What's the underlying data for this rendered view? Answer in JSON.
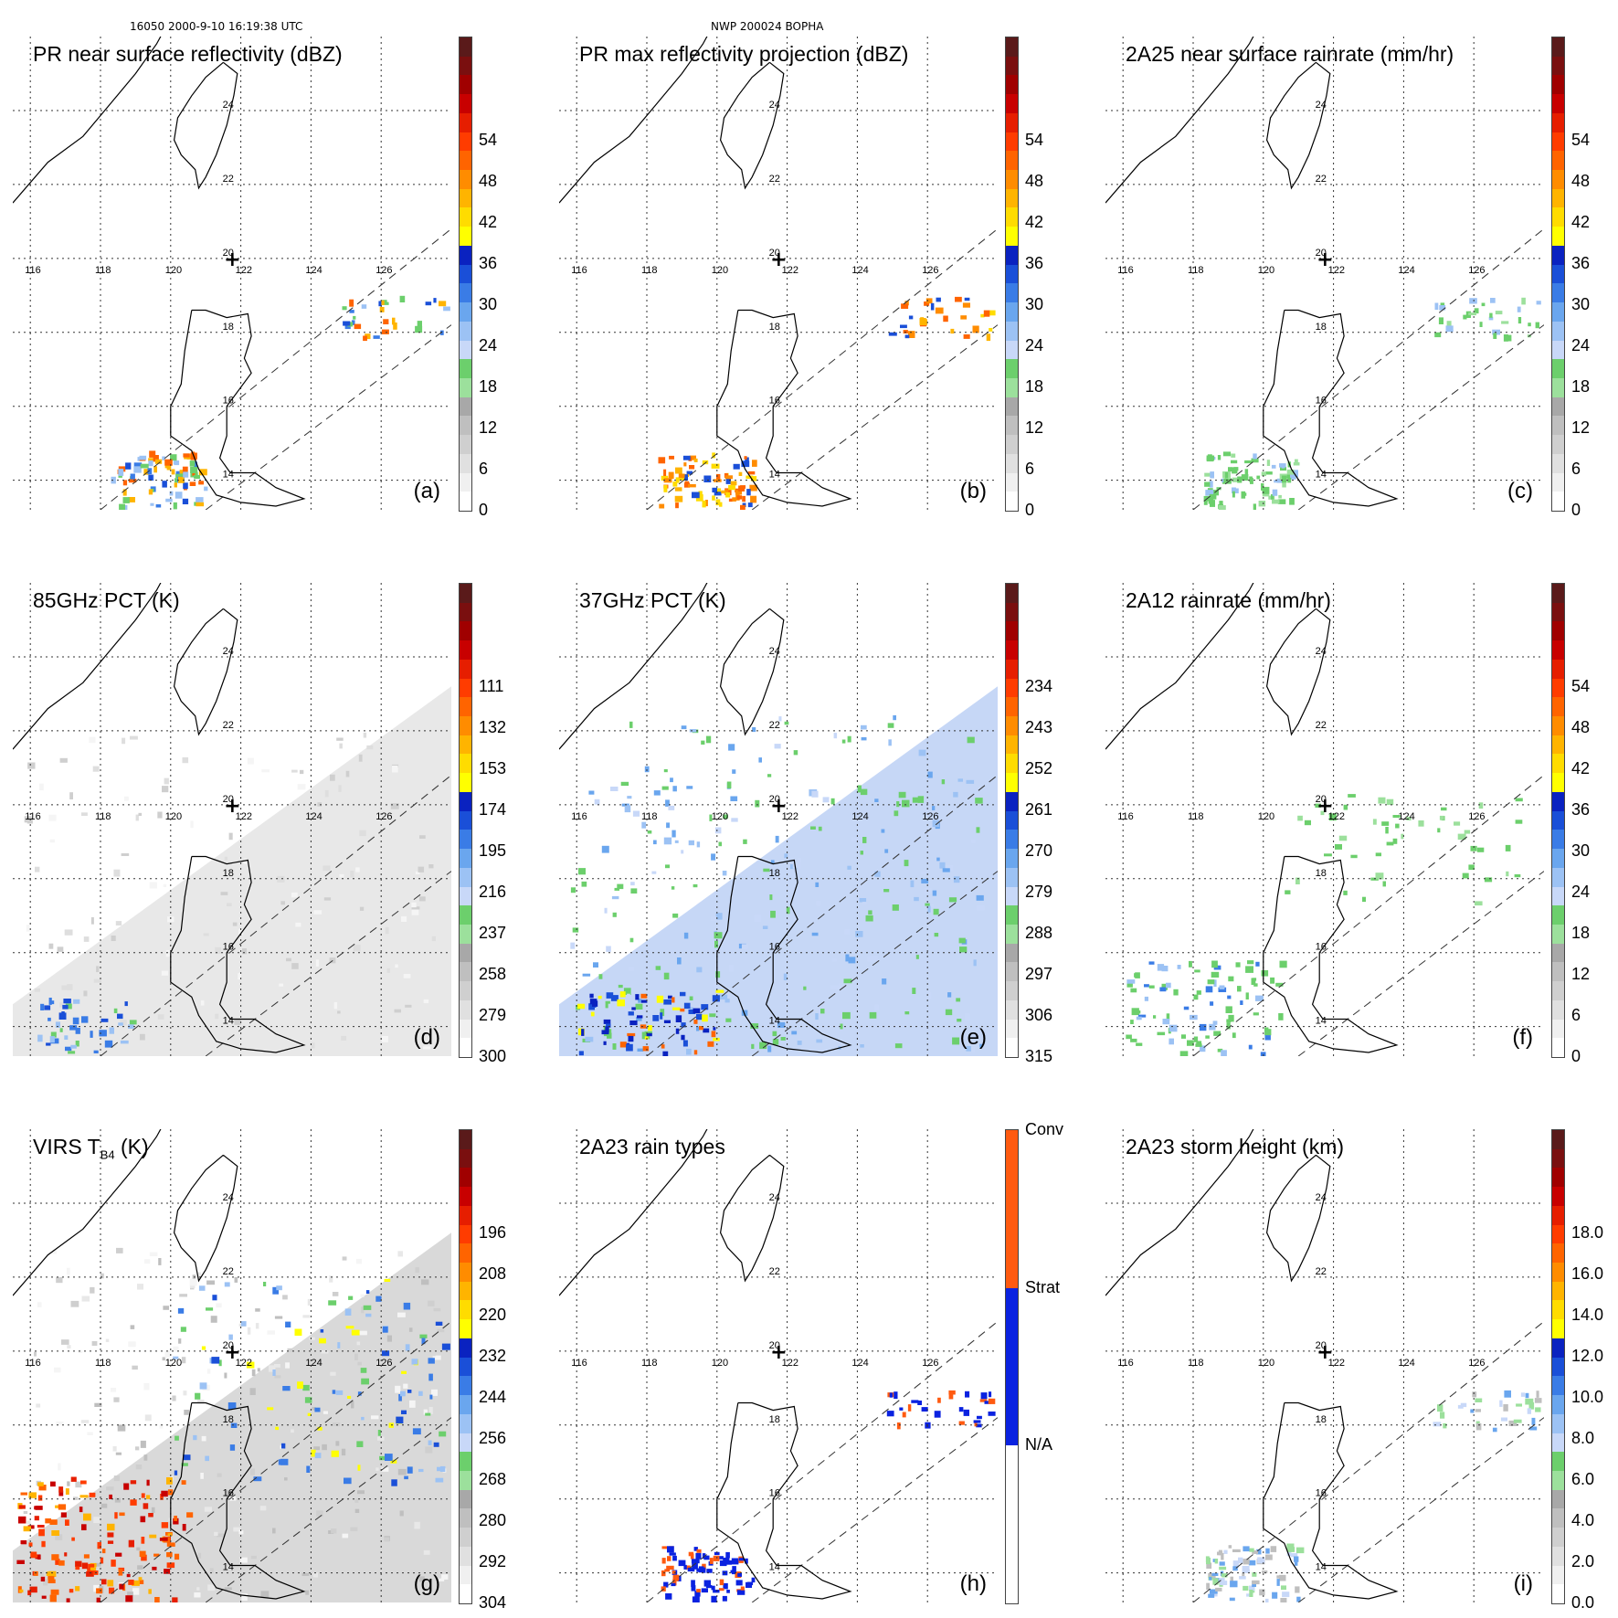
{
  "header": {
    "left": "16050 2000-9-10 16:19:38 UTC",
    "center": "NWP 200024 BOPHA"
  },
  "map": {
    "lon_labels": [
      "116",
      "118",
      "120",
      "122",
      "124",
      "126"
    ],
    "lat_labels": [
      "14",
      "16",
      "18",
      "20",
      "22",
      "24"
    ],
    "center_marker": "+"
  },
  "panels": [
    {
      "id": "a",
      "title": "PR near surface reflectivity (dBZ)",
      "tag": "(a)",
      "colorbar": [
        "0",
        "6",
        "12",
        "18",
        "24",
        "30",
        "36",
        "42",
        "48",
        "54"
      ]
    },
    {
      "id": "b",
      "title": "PR max reflectivity projection (dBZ)",
      "tag": "(b)",
      "colorbar": [
        "0",
        "6",
        "12",
        "18",
        "24",
        "30",
        "36",
        "42",
        "48",
        "54"
      ]
    },
    {
      "id": "c",
      "title": "2A25 near surface rainrate (mm/hr)",
      "tag": "(c)",
      "colorbar": [
        "0",
        "6",
        "12",
        "18",
        "24",
        "30",
        "36",
        "42",
        "48",
        "54"
      ]
    },
    {
      "id": "d",
      "title": "85GHz PCT (K)",
      "tag": "(d)",
      "colorbar": [
        "300",
        "279",
        "258",
        "237",
        "216",
        "195",
        "174",
        "153",
        "132",
        "111"
      ]
    },
    {
      "id": "e",
      "title": "37GHz PCT (K)",
      "tag": "(e)",
      "colorbar": [
        "315",
        "306",
        "297",
        "288",
        "279",
        "270",
        "261",
        "252",
        "243",
        "234"
      ]
    },
    {
      "id": "f",
      "title": "2A12 rainrate (mm/hr)",
      "tag": "(f)",
      "colorbar": [
        "0",
        "6",
        "12",
        "18",
        "24",
        "30",
        "36",
        "42",
        "48",
        "54"
      ]
    },
    {
      "id": "g",
      "title": "VIRS T",
      "title_sub": "B4",
      "title_rest": " (K)",
      "tag": "(g)",
      "colorbar": [
        "304",
        "292",
        "280",
        "268",
        "256",
        "244",
        "232",
        "220",
        "208",
        "196"
      ]
    },
    {
      "id": "h",
      "title": "2A23 rain types",
      "tag": "(h)",
      "colorbar": [
        "N/A",
        "Strat",
        "Conv"
      ]
    },
    {
      "id": "i",
      "title": "2A23 storm height (km)",
      "tag": "(i)",
      "colorbar": [
        "0.0",
        "2.0",
        "4.0",
        "6.0",
        "8.0",
        "10.0",
        "12.0",
        "14.0",
        "16.0",
        "18.0"
      ]
    }
  ],
  "colors": {
    "scale": [
      "#ffffff",
      "#f0f0f0",
      "#e0e0e0",
      "#cfcfcf",
      "#bfbfbf",
      "#a8a8a8",
      "#9ce09c",
      "#6ccf6c",
      "#c8d8f8",
      "#9cc2f4",
      "#6aa6ee",
      "#3a7ce6",
      "#1a4fd8",
      "#0a22c0",
      "#ffff00",
      "#ffdc00",
      "#ffb400",
      "#ff8c00",
      "#ff6400",
      "#ff3c00",
      "#e61e00",
      "#c80000",
      "#a00000",
      "#7a0f0f",
      "#5a1a1a"
    ],
    "raintype": [
      "#ffffff",
      "#0a22e0",
      "#ff5a10"
    ]
  }
}
